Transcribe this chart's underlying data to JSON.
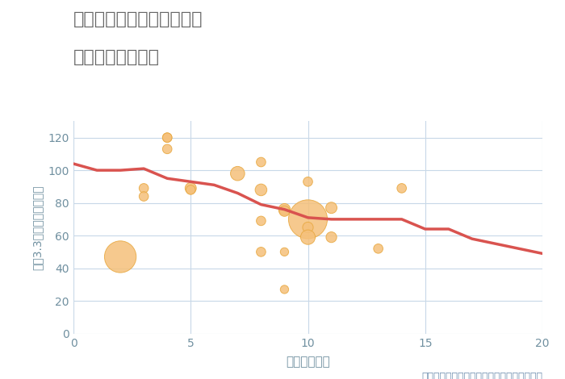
{
  "title_line1": "兵庫県尼崎市武庫之荘東の",
  "title_line2": "駅距離別土地価格",
  "xlabel": "駅距離（分）",
  "ylabel": "坪（3.3㎡）単価（万円）",
  "annotation": "円の大きさは、取引のあった物件面積を示す",
  "xlim": [
    0,
    20
  ],
  "ylim": [
    0,
    130
  ],
  "yticks": [
    0,
    20,
    40,
    60,
    80,
    100,
    120
  ],
  "xticks": [
    0,
    5,
    10,
    15,
    20
  ],
  "scatter_x": [
    2,
    3,
    3,
    4,
    4,
    4,
    5,
    5,
    7,
    8,
    8,
    8,
    8,
    9,
    9,
    9,
    9,
    10,
    10,
    10,
    10,
    11,
    11,
    13,
    14
  ],
  "scatter_y": [
    47,
    89,
    84,
    120,
    120,
    113,
    89,
    88,
    98,
    105,
    88,
    69,
    50,
    76,
    75,
    50,
    27,
    70,
    65,
    59,
    93,
    77,
    59,
    52,
    89
  ],
  "scatter_size": [
    800,
    70,
    70,
    70,
    70,
    70,
    100,
    70,
    160,
    70,
    110,
    70,
    70,
    110,
    90,
    55,
    55,
    1200,
    90,
    170,
    70,
    100,
    90,
    70,
    70
  ],
  "scatter_color": "#f5c07a",
  "scatter_edgecolor": "#e8a840",
  "line_x": [
    0,
    1,
    2,
    3,
    4,
    5,
    6,
    7,
    8,
    9,
    10,
    11,
    12,
    13,
    14,
    15,
    16,
    17,
    18,
    19,
    20
  ],
  "line_y": [
    104,
    100,
    100,
    101,
    95,
    93,
    91,
    86,
    79,
    76,
    71,
    70,
    70,
    70,
    70,
    64,
    64,
    58,
    55,
    52,
    49
  ],
  "line_color": "#d9534f",
  "line_width": 2.5,
  "bg_color": "#ffffff",
  "grid_color": "#c8d8e8",
  "title_color": "#666666",
  "axis_color": "#7090a0",
  "annotation_color": "#7090b0",
  "tick_fontsize": 10,
  "xlabel_fontsize": 11,
  "ylabel_fontsize": 10,
  "title_fontsize": 16,
  "annotation_fontsize": 9
}
